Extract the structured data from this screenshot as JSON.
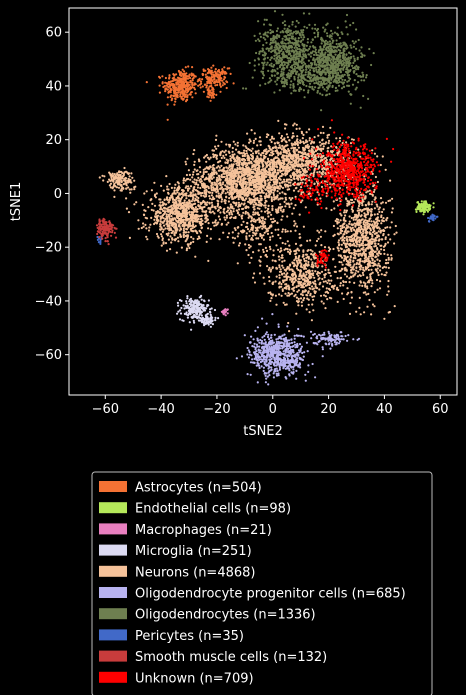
{
  "chart_data": {
    "type": "scatter",
    "xlabel": "tSNE2",
    "ylabel": "tSNE1",
    "xlim": [
      -73,
      66
    ],
    "ylim": [
      -75,
      69
    ],
    "x_ticks": [
      -60,
      -40,
      -20,
      0,
      20,
      40,
      60
    ],
    "y_ticks": [
      60,
      40,
      20,
      0,
      -20,
      -40,
      -60
    ],
    "x_tick_labels": [
      "−60",
      "−40",
      "−20",
      "0",
      "20",
      "40",
      "60"
    ],
    "y_tick_labels": [
      "60",
      "40",
      "20",
      "0",
      "−20",
      "−40",
      "−60"
    ],
    "grid": false,
    "legend_position": "bottom",
    "series": [
      {
        "name": "Astrocytes (n=504)",
        "color": "#f47234",
        "clusters": [
          {
            "cx": -33,
            "cy": 40,
            "sx": 3,
            "sy": 3,
            "n": 320
          },
          {
            "cx": -21,
            "cy": 43,
            "sx": 2.5,
            "sy": 1.8,
            "n": 150
          },
          {
            "cx": -22,
            "cy": 37,
            "sx": 1,
            "sy": 1.5,
            "n": 34
          }
        ]
      },
      {
        "name": "Endothelial cells (n=98)",
        "color": "#b5e85a",
        "clusters": [
          {
            "cx": 54,
            "cy": -5,
            "sx": 1.2,
            "sy": 1,
            "n": 98
          }
        ]
      },
      {
        "name": "Macrophages (n=21)",
        "color": "#e87fbf",
        "clusters": [
          {
            "cx": -17,
            "cy": -44,
            "sx": 0.6,
            "sy": 0.6,
            "n": 21
          }
        ]
      },
      {
        "name": "Microglia (n=251)",
        "color": "#dcdaf2",
        "clusters": [
          {
            "cx": -28,
            "cy": -43,
            "sx": 2.5,
            "sy": 2,
            "n": 180
          },
          {
            "cx": -24,
            "cy": -47,
            "sx": 2,
            "sy": 1,
            "n": 71
          }
        ]
      },
      {
        "name": "Neurons (n=4868)",
        "color": "#f5c29a",
        "clusters": [
          {
            "cx": -10,
            "cy": 5,
            "sx": 9,
            "sy": 6,
            "n": 1400
          },
          {
            "cx": -33,
            "cy": -8,
            "sx": 6,
            "sy": 5,
            "n": 800
          },
          {
            "cx": 10,
            "cy": 12,
            "sx": 9,
            "sy": 5,
            "n": 900
          },
          {
            "cx": 32,
            "cy": -17,
            "sx": 5,
            "sy": 10,
            "n": 900
          },
          {
            "cx": 10,
            "cy": -30,
            "sx": 6,
            "sy": 6,
            "n": 500
          },
          {
            "cx": -55,
            "cy": 5,
            "sx": 2.5,
            "sy": 2,
            "n": 150
          },
          {
            "cx": -5,
            "cy": -12,
            "sx": 7,
            "sy": 5,
            "n": 218
          }
        ]
      },
      {
        "name": "Oligodendrocyte progenitor cells (n=685)",
        "color": "#b8b3f0",
        "clusters": [
          {
            "cx": 2,
            "cy": -60,
            "sx": 5,
            "sy": 4,
            "n": 600
          },
          {
            "cx": 21,
            "cy": -54,
            "sx": 3,
            "sy": 1.3,
            "n": 85
          }
        ]
      },
      {
        "name": "Oligodendrocytes (n=1336)",
        "color": "#6e7f50",
        "clusters": [
          {
            "cx": 5,
            "cy": 53,
            "sx": 5,
            "sy": 5,
            "n": 500
          },
          {
            "cx": 22,
            "cy": 49,
            "sx": 5,
            "sy": 5.5,
            "n": 600
          },
          {
            "cx": 12,
            "cy": 43,
            "sx": 7,
            "sy": 2.5,
            "n": 236
          }
        ]
      },
      {
        "name": "Pericytes (n=35)",
        "color": "#4169c8",
        "clusters": [
          {
            "cx": -62,
            "cy": -17,
            "sx": 0.6,
            "sy": 1,
            "n": 12
          },
          {
            "cx": 57,
            "cy": -9,
            "sx": 1,
            "sy": 0.6,
            "n": 23
          }
        ]
      },
      {
        "name": "Smooth muscle cells (n=132)",
        "color": "#c83c3c",
        "clusters": [
          {
            "cx": -60,
            "cy": -13,
            "sx": 1.5,
            "sy": 2,
            "n": 132
          }
        ]
      },
      {
        "name": "Unknown (n=709)",
        "color": "#ff0000",
        "clusters": [
          {
            "cx": 27,
            "cy": 8,
            "sx": 5,
            "sy": 5,
            "n": 600
          },
          {
            "cx": 18,
            "cy": -24,
            "sx": 1,
            "sy": 1.5,
            "n": 40
          },
          {
            "cx": 14,
            "cy": 2,
            "sx": 3,
            "sy": 3,
            "n": 69
          }
        ]
      }
    ]
  }
}
